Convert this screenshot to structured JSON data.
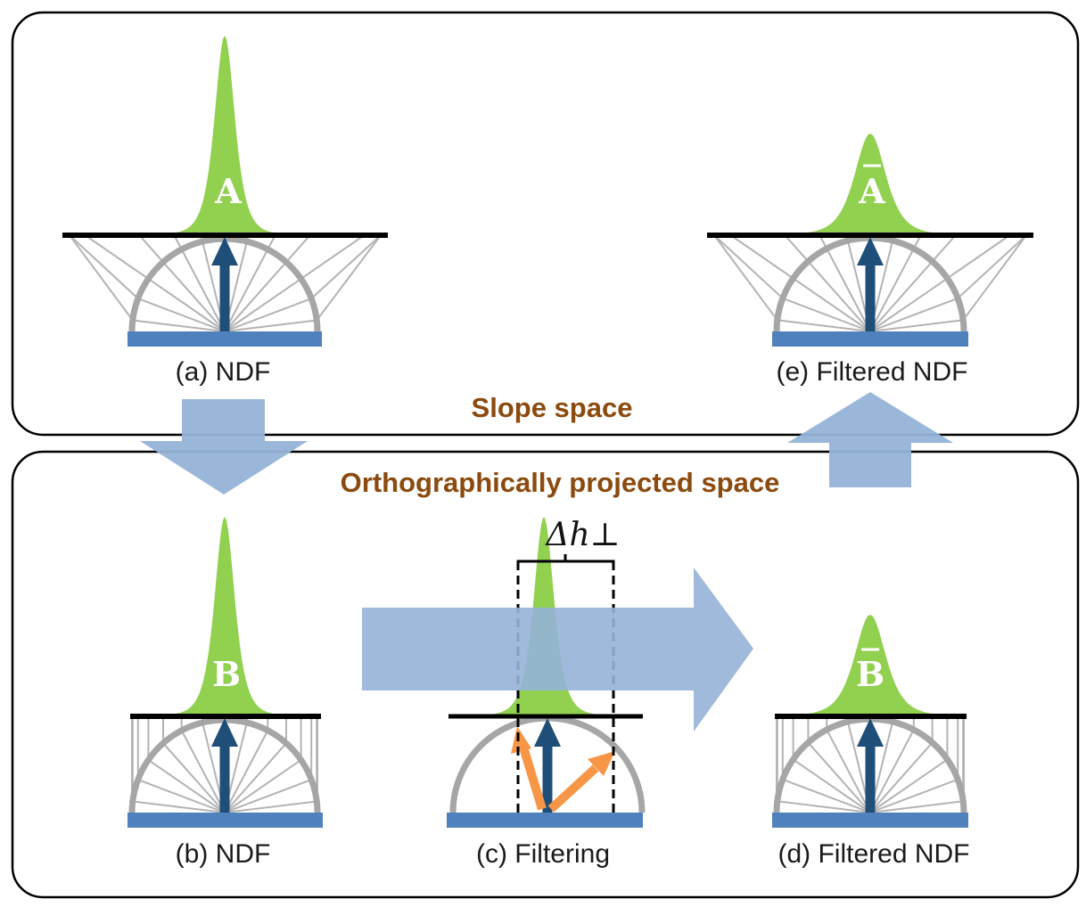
{
  "colors": {
    "ndf_green": "#92d050",
    "surface_blue": "#4f81bd",
    "normal_arrow": "#1f4e79",
    "flow_arrow": "#95b3d7",
    "sample_arrow": "#f79646",
    "hemisphere": "#a6a6a6",
    "ray": "#b3b3b3",
    "space_title": "#8b4a0e"
  },
  "spaces": {
    "slope": {
      "title": "Slope space"
    },
    "projected": {
      "title": "Orthographically projected space"
    }
  },
  "panels": {
    "a": {
      "caption": "(a) NDF",
      "letter": "A",
      "bar": false,
      "projection": "slope",
      "peak": "sharp"
    },
    "b": {
      "caption": "(b) NDF",
      "letter": "B",
      "bar": false,
      "projection": "orthographic",
      "peak": "sharp"
    },
    "c": {
      "caption": "(c) Filtering",
      "delta_label": "Δh⊥",
      "projection": "none",
      "peak": "sharp"
    },
    "d": {
      "caption": "(d) Filtered NDF",
      "letter": "B",
      "bar": true,
      "projection": "orthographic",
      "peak": "wide"
    },
    "e": {
      "caption": "(e) Filtered NDF",
      "letter": "A",
      "bar": true,
      "projection": "slope",
      "peak": "wide"
    }
  },
  "icons": {
    "normal": "up-arrow-icon",
    "flow": "block-arrow-icon",
    "sample": "sample-arrow-icon"
  }
}
